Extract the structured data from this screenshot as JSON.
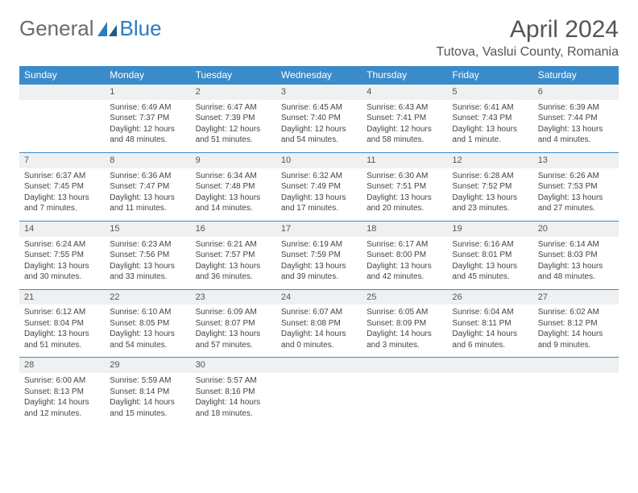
{
  "brand": {
    "part1": "General",
    "part2": "Blue"
  },
  "title": "April 2024",
  "location": "Tutova, Vaslui County, Romania",
  "colors": {
    "header_bg": "#3b8bc9",
    "daynum_bg": "#eef0f1",
    "text": "#444444",
    "title_color": "#555555"
  },
  "fonts": {
    "title_size": 30,
    "location_size": 16,
    "th_size": 12,
    "body_size": 10
  },
  "weekdays": [
    "Sunday",
    "Monday",
    "Tuesday",
    "Wednesday",
    "Thursday",
    "Friday",
    "Saturday"
  ],
  "leading_blanks": 1,
  "days": [
    {
      "n": 1,
      "sunrise": "6:49 AM",
      "sunset": "7:37 PM",
      "daylight": "12 hours and 48 minutes."
    },
    {
      "n": 2,
      "sunrise": "6:47 AM",
      "sunset": "7:39 PM",
      "daylight": "12 hours and 51 minutes."
    },
    {
      "n": 3,
      "sunrise": "6:45 AM",
      "sunset": "7:40 PM",
      "daylight": "12 hours and 54 minutes."
    },
    {
      "n": 4,
      "sunrise": "6:43 AM",
      "sunset": "7:41 PM",
      "daylight": "12 hours and 58 minutes."
    },
    {
      "n": 5,
      "sunrise": "6:41 AM",
      "sunset": "7:43 PM",
      "daylight": "13 hours and 1 minute."
    },
    {
      "n": 6,
      "sunrise": "6:39 AM",
      "sunset": "7:44 PM",
      "daylight": "13 hours and 4 minutes."
    },
    {
      "n": 7,
      "sunrise": "6:37 AM",
      "sunset": "7:45 PM",
      "daylight": "13 hours and 7 minutes."
    },
    {
      "n": 8,
      "sunrise": "6:36 AM",
      "sunset": "7:47 PM",
      "daylight": "13 hours and 11 minutes."
    },
    {
      "n": 9,
      "sunrise": "6:34 AM",
      "sunset": "7:48 PM",
      "daylight": "13 hours and 14 minutes."
    },
    {
      "n": 10,
      "sunrise": "6:32 AM",
      "sunset": "7:49 PM",
      "daylight": "13 hours and 17 minutes."
    },
    {
      "n": 11,
      "sunrise": "6:30 AM",
      "sunset": "7:51 PM",
      "daylight": "13 hours and 20 minutes."
    },
    {
      "n": 12,
      "sunrise": "6:28 AM",
      "sunset": "7:52 PM",
      "daylight": "13 hours and 23 minutes."
    },
    {
      "n": 13,
      "sunrise": "6:26 AM",
      "sunset": "7:53 PM",
      "daylight": "13 hours and 27 minutes."
    },
    {
      "n": 14,
      "sunrise": "6:24 AM",
      "sunset": "7:55 PM",
      "daylight": "13 hours and 30 minutes."
    },
    {
      "n": 15,
      "sunrise": "6:23 AM",
      "sunset": "7:56 PM",
      "daylight": "13 hours and 33 minutes."
    },
    {
      "n": 16,
      "sunrise": "6:21 AM",
      "sunset": "7:57 PM",
      "daylight": "13 hours and 36 minutes."
    },
    {
      "n": 17,
      "sunrise": "6:19 AM",
      "sunset": "7:59 PM",
      "daylight": "13 hours and 39 minutes."
    },
    {
      "n": 18,
      "sunrise": "6:17 AM",
      "sunset": "8:00 PM",
      "daylight": "13 hours and 42 minutes."
    },
    {
      "n": 19,
      "sunrise": "6:16 AM",
      "sunset": "8:01 PM",
      "daylight": "13 hours and 45 minutes."
    },
    {
      "n": 20,
      "sunrise": "6:14 AM",
      "sunset": "8:03 PM",
      "daylight": "13 hours and 48 minutes."
    },
    {
      "n": 21,
      "sunrise": "6:12 AM",
      "sunset": "8:04 PM",
      "daylight": "13 hours and 51 minutes."
    },
    {
      "n": 22,
      "sunrise": "6:10 AM",
      "sunset": "8:05 PM",
      "daylight": "13 hours and 54 minutes."
    },
    {
      "n": 23,
      "sunrise": "6:09 AM",
      "sunset": "8:07 PM",
      "daylight": "13 hours and 57 minutes."
    },
    {
      "n": 24,
      "sunrise": "6:07 AM",
      "sunset": "8:08 PM",
      "daylight": "14 hours and 0 minutes."
    },
    {
      "n": 25,
      "sunrise": "6:05 AM",
      "sunset": "8:09 PM",
      "daylight": "14 hours and 3 minutes."
    },
    {
      "n": 26,
      "sunrise": "6:04 AM",
      "sunset": "8:11 PM",
      "daylight": "14 hours and 6 minutes."
    },
    {
      "n": 27,
      "sunrise": "6:02 AM",
      "sunset": "8:12 PM",
      "daylight": "14 hours and 9 minutes."
    },
    {
      "n": 28,
      "sunrise": "6:00 AM",
      "sunset": "8:13 PM",
      "daylight": "14 hours and 12 minutes."
    },
    {
      "n": 29,
      "sunrise": "5:59 AM",
      "sunset": "8:14 PM",
      "daylight": "14 hours and 15 minutes."
    },
    {
      "n": 30,
      "sunrise": "5:57 AM",
      "sunset": "8:16 PM",
      "daylight": "14 hours and 18 minutes."
    }
  ],
  "labels": {
    "sunrise": "Sunrise: ",
    "sunset": "Sunset: ",
    "daylight": "Daylight: "
  }
}
